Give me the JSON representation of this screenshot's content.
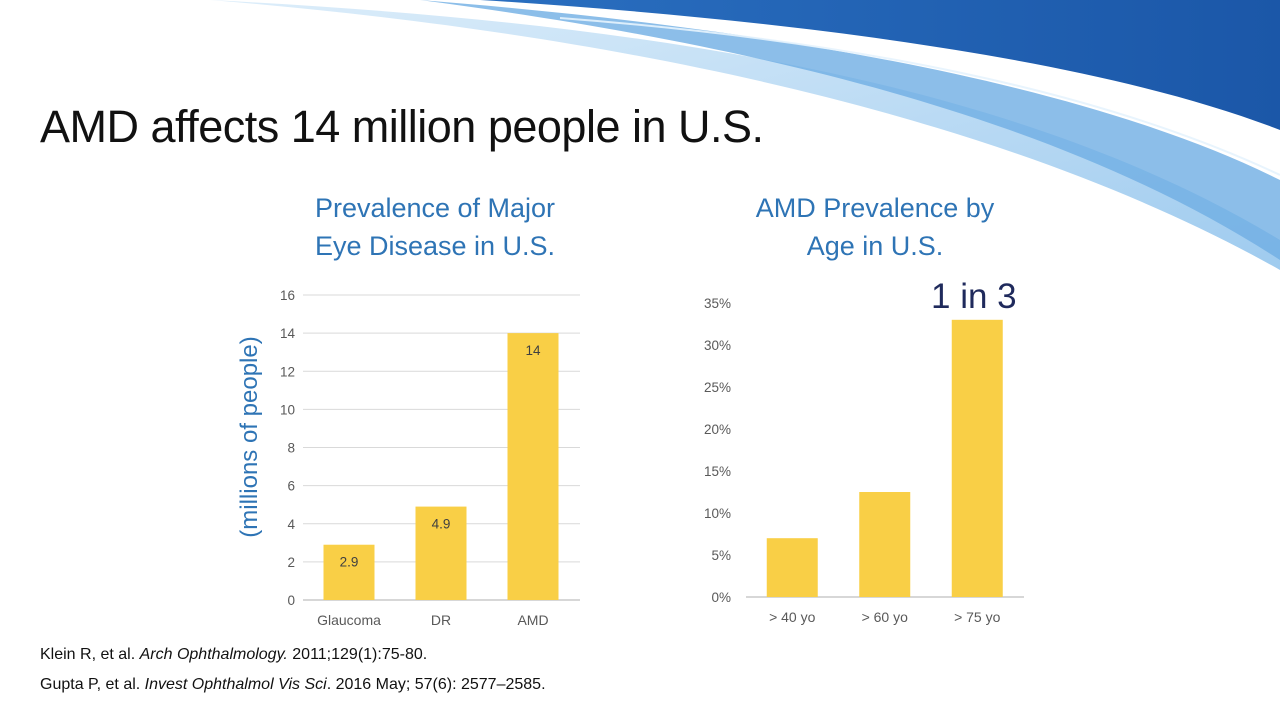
{
  "slide": {
    "title": "AMD affects 14 million people in U.S.",
    "annotation": "1 in 3"
  },
  "colors": {
    "bar": "#F9CF46",
    "chart_title": "#2E74B5",
    "grid": "#D9D9D9",
    "tick": "#595959",
    "wave_dark": "#1F5FAE",
    "wave_light": "#9CCBEF"
  },
  "references": [
    {
      "authors": "Klein R, et al. ",
      "journal": "Arch Ophthalmology.",
      "details": " 2011;129(1):75-80."
    },
    {
      "authors": "Gupta P, et al. ",
      "journal": "Invest Ophthalmol Vis Sci",
      "details": ". 2016 May; 57(6): 2577–2585."
    }
  ],
  "chart_data": [
    {
      "type": "bar",
      "title": "Prevalence of Major Eye Disease in U.S.",
      "title_lines": [
        "Prevalence of Major",
        "Eye Disease in U.S."
      ],
      "ylabel": "(millions of people)",
      "categories": [
        "Glaucoma",
        "DR",
        "AMD"
      ],
      "values": [
        2.9,
        4.9,
        14
      ],
      "data_labels": [
        "2.9",
        "4.9",
        "14"
      ],
      "ylim": [
        0,
        16
      ],
      "yticks": [
        0,
        2,
        4,
        6,
        8,
        10,
        12,
        14,
        16
      ],
      "ytick_labels": [
        "0",
        "2",
        "4",
        "6",
        "8",
        "10",
        "12",
        "14",
        "16"
      ],
      "grid": true
    },
    {
      "type": "bar",
      "title": "AMD Prevalence by Age in U.S.",
      "title_lines": [
        "AMD Prevalence by",
        "Age in U.S."
      ],
      "categories": [
        "> 40 yo",
        "> 60 yo",
        "> 75 yo"
      ],
      "values": [
        7,
        12.5,
        33
      ],
      "ylim": [
        0,
        35
      ],
      "yticks": [
        0,
        5,
        10,
        15,
        20,
        25,
        30,
        35
      ],
      "ytick_labels": [
        "0%",
        "5%",
        "10%",
        "15%",
        "20%",
        "25%",
        "30%",
        "35%"
      ],
      "grid": false
    }
  ]
}
